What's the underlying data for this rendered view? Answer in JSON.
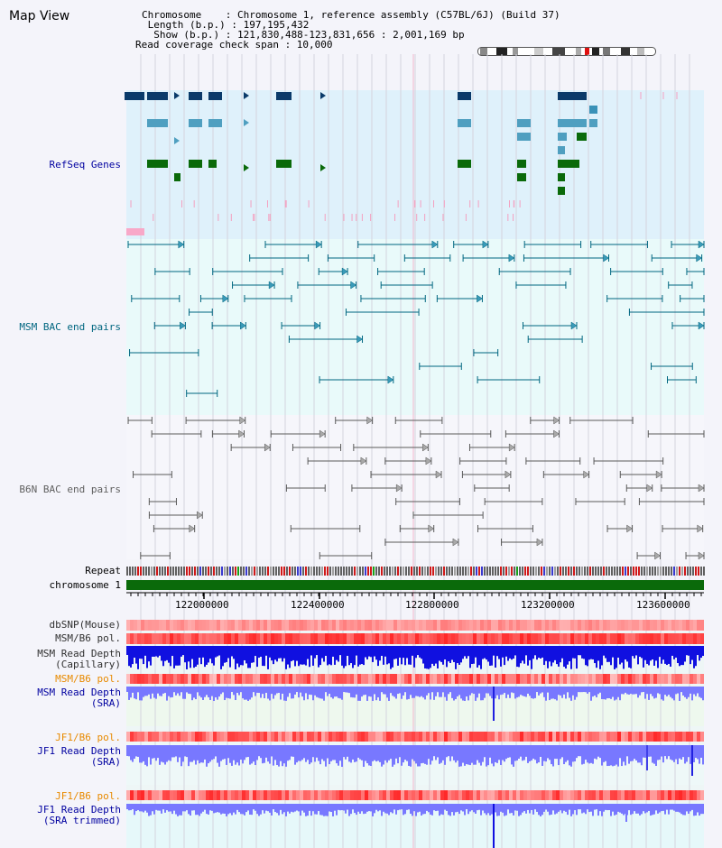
{
  "title": "Map View",
  "header": {
    "lines": [
      "Chromosome    : Chromosome 1, reference assembly (C57BL/6J) (Build 37)",
      " Length (b.p.) : 197,195,432",
      "  Show (b.p.) : 121,830,488-123,831,656 : 2,001,169 bp",
      "Read coverage check span : 10,000"
    ]
  },
  "axis": {
    "ticks": [
      "122000000",
      "122400000",
      "122800000",
      "123200000",
      "123600000"
    ]
  },
  "tracks": {
    "refseq": "RefSeq Genes",
    "msm_bac": "MSM BAC end pairs",
    "b6n_bac": "B6N BAC end pairs",
    "repeat": "Repeat",
    "chromosome": "chromosome 1",
    "dbsnp": "dbSNP(Mouse)",
    "msm_b6_pol": "MSM/B6 pol.",
    "msm_read_depth_cap": [
      "MSM Read Depth",
      "(Capillary)"
    ],
    "msm_b6_pol_2": "MSM/B6 pol.",
    "msm_read_depth_sra": [
      "MSM Read Depth",
      "(SRA)"
    ],
    "jf1_b6_pol": "JF1/B6 pol.",
    "jf1_read_depth_sra": [
      "JF1 Read Depth",
      "(SRA)"
    ],
    "jf1_b6_pol_2": "JF1/B6 pol.",
    "jf1_read_depth_trim": [
      "JF1 Read Depth",
      "(SRA trimmed)"
    ]
  },
  "colors": {
    "background": "#f4f4fa",
    "refseq_bg": "#dff1fb",
    "msm_bg": "#e9fafa",
    "b6n_bg": "#f6f6fb",
    "msm_label": "#006680",
    "refseq_label": "#0000a0",
    "b6n_label": "#606060",
    "pol_label_orange": "#e88a00",
    "gene_dark": "#0a3a6a",
    "gene_mid": "#4f9fc0",
    "gene_green": "#0a6a0a",
    "chromosome_bar": "#0a6a0a",
    "depth_capillary": "#1010e0",
    "depth_sra": "#7878ff",
    "pol_red": "#ff6060"
  },
  "icons": [
    "chromosome-ideogram",
    "refseq-gene-glyphs",
    "bac-end-pair-glyphs",
    "repeat-bar",
    "axis-ruler"
  ]
}
